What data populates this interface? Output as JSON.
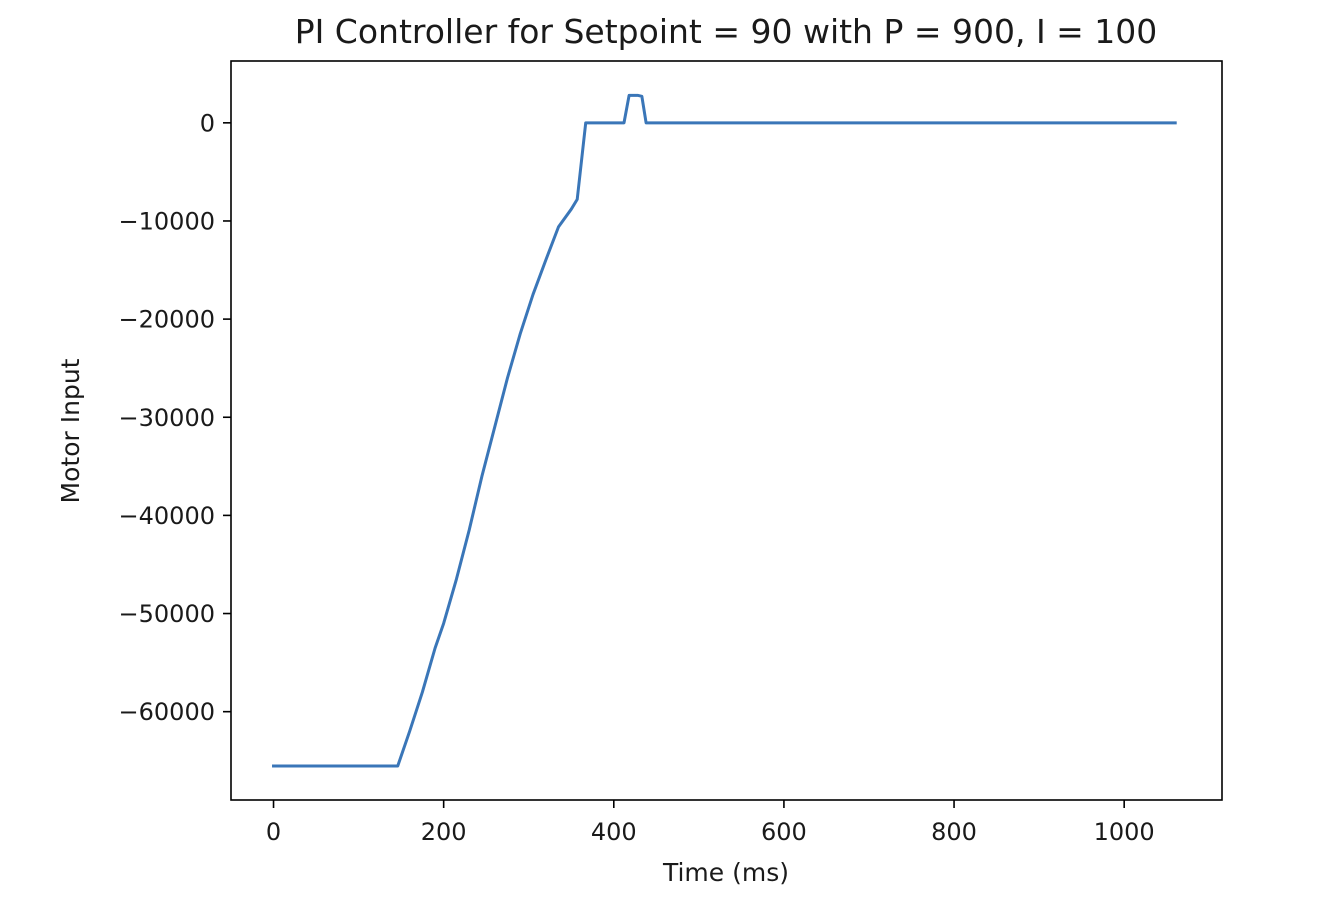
{
  "chart_data": {
    "type": "line",
    "title": "PI Controller for Setpoint = 90 with P = 900, I = 100",
    "xlabel": "Time (ms)",
    "ylabel": "Motor Input",
    "xlim": [
      -50,
      1115
    ],
    "ylim": [
      -69000,
      6300
    ],
    "xticks": [
      0,
      200,
      400,
      600,
      800,
      1000
    ],
    "xtick_labels": [
      "0",
      "200",
      "400",
      "600",
      "800",
      "1000"
    ],
    "yticks": [
      0,
      -10000,
      -20000,
      -30000,
      -40000,
      -50000,
      -60000
    ],
    "ytick_labels": [
      "0",
      "−10000",
      "−20000",
      "−30000",
      "−40000",
      "−50000",
      "−60000"
    ],
    "grid": false,
    "legend": "none",
    "series": [
      {
        "color": "#3a76b8",
        "x": [
          0,
          50,
          100,
          146,
          160,
          175,
          190,
          200,
          215,
          230,
          245,
          260,
          275,
          290,
          305,
          320,
          335,
          350,
          357,
          367,
          380,
          412,
          418,
          428,
          433,
          438,
          450,
          600,
          800,
          1000,
          1060
        ],
        "y": [
          -65535,
          -65535,
          -65535,
          -65535,
          -62000,
          -58000,
          -53500,
          -51000,
          -46500,
          -41500,
          -36000,
          -31000,
          -26000,
          -21500,
          -17500,
          -14000,
          -10600,
          -8800,
          -7800,
          0,
          0,
          0,
          2800,
          2800,
          2700,
          0,
          0,
          0,
          0,
          0,
          0
        ]
      }
    ]
  }
}
